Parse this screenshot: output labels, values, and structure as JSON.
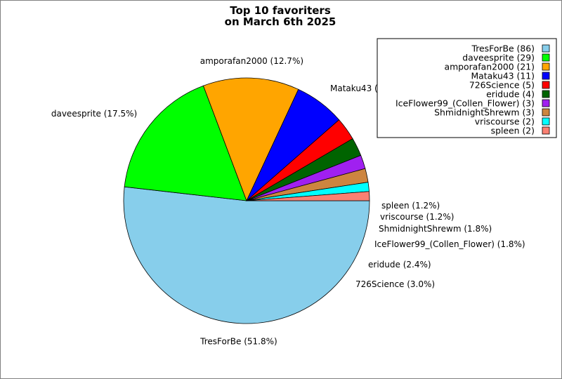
{
  "chart_data": {
    "type": "pie",
    "title_lines": [
      "Top 10 favoriters",
      "on March 6th 2025"
    ],
    "legend_position": "top-right",
    "slices": [
      {
        "name": "TresForBe",
        "count": 86,
        "percent": "51.8%",
        "color": "#87ceeb"
      },
      {
        "name": "daveesprite",
        "count": 29,
        "percent": "17.5%",
        "color": "#00ff00"
      },
      {
        "name": "amporafan2000",
        "count": 21,
        "percent": "12.7%",
        "color": "#ffa500"
      },
      {
        "name": "Mataku43",
        "count": 11,
        "percent": "6.6%",
        "color": "#0000ff"
      },
      {
        "name": "726Science",
        "count": 5,
        "percent": "3.0%",
        "color": "#ff0000"
      },
      {
        "name": "eridude",
        "count": 4,
        "percent": "2.4%",
        "color": "#006400"
      },
      {
        "name": "IceFlower99_(Collen_Flower)",
        "count": 3,
        "percent": "1.8%",
        "color": "#a020f0"
      },
      {
        "name": "ShmidnightShrewm",
        "count": 3,
        "percent": "1.8%",
        "color": "#cd853f"
      },
      {
        "name": "vriscourse",
        "count": 2,
        "percent": "1.2%",
        "color": "#00ffff"
      },
      {
        "name": "spleen",
        "count": 2,
        "percent": "1.2%",
        "color": "#fa8072"
      }
    ]
  }
}
